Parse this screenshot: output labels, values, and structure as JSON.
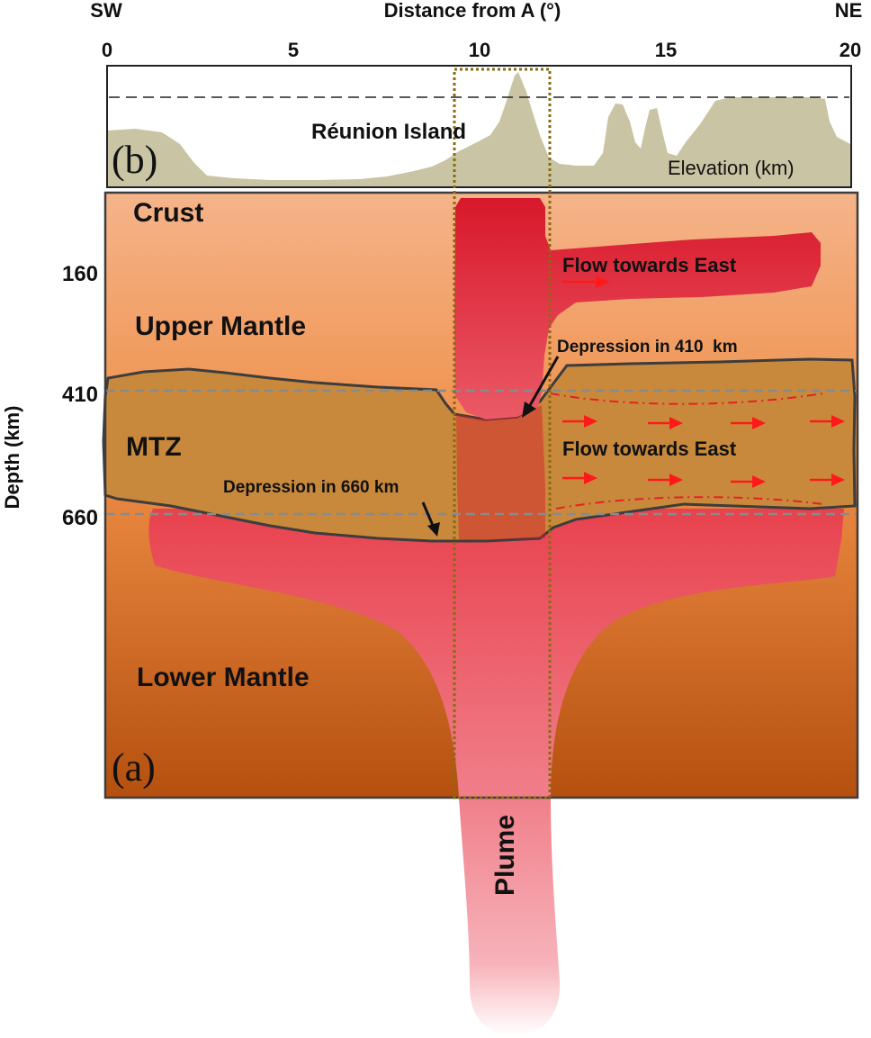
{
  "profile": {
    "axis_title": "Distance from A (°)",
    "left_direction": "SW",
    "right_direction": "NE",
    "ticks": [
      "0",
      "5",
      "10",
      "15",
      "20"
    ],
    "panel_letter": "(b)",
    "island_label": "Réunion Island",
    "elevation_label": "Elevation (km)"
  },
  "cross_section": {
    "panel_letter": "(a)",
    "depth_axis_title": "Depth (km)",
    "depth_ticks": [
      "160",
      "410",
      "660"
    ],
    "layers": {
      "crust": "Crust",
      "upper_mantle": "Upper Mantle",
      "mtz": "MTZ",
      "lower_mantle": "Lower Mantle"
    },
    "annotations": {
      "flow_upper": "Flow towards East",
      "flow_mtz": "Flow towards East",
      "depression_410": "Depression in 410  km",
      "depression_660": "Depression in 660 km"
    },
    "plume_label": "Plume"
  },
  "colors": {
    "terrain": "#c9c4a3",
    "mantle_top": "#f5b48a",
    "mantle_bottom": "#b5500f",
    "mtz": "#c8893c",
    "plume": "#d7182a",
    "flow_arrow": "#ff1a1a"
  }
}
